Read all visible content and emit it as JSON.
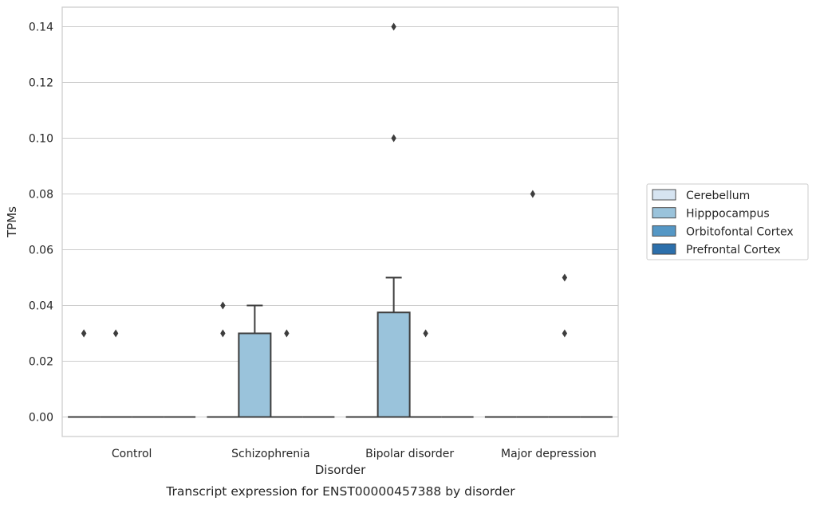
{
  "chart_data": {
    "type": "box",
    "caption": "Transcript expression for ENST00000457388 by disorder",
    "xlabel": "Disorder",
    "ylabel": "TPMs",
    "ylim": [
      -0.007,
      0.147
    ],
    "yticks": [
      0.0,
      0.02,
      0.04,
      0.06,
      0.08,
      0.1,
      0.12,
      0.14
    ],
    "ytick_labels": [
      "0.00",
      "0.02",
      "0.04",
      "0.06",
      "0.08",
      "0.10",
      "0.12",
      "0.14"
    ],
    "grid": "horizontal",
    "legend_position": "right",
    "categories": [
      "Control",
      "Schizophrenia",
      "Bipolar disorder",
      "Major depression"
    ],
    "series": [
      {
        "name": "Cerebellum",
        "color": "#d6e4f1",
        "boxes": [
          {
            "category": "Control",
            "q1": 0.0,
            "median": 0.0,
            "q3": 0.0,
            "whisker_low": 0.0,
            "whisker_high": 0.0,
            "outliers": [
              0.03,
              0.03
            ]
          },
          {
            "category": "Schizophrenia",
            "q1": 0.0,
            "median": 0.0,
            "q3": 0.0,
            "whisker_low": 0.0,
            "whisker_high": 0.0,
            "outliers": [
              0.03,
              0.04
            ]
          },
          {
            "category": "Bipolar disorder",
            "q1": 0.0,
            "median": 0.0,
            "q3": 0.0,
            "whisker_low": 0.0,
            "whisker_high": 0.0,
            "outliers": []
          },
          {
            "category": "Major depression",
            "q1": 0.0,
            "median": 0.0,
            "q3": 0.0,
            "whisker_low": 0.0,
            "whisker_high": 0.0,
            "outliers": []
          }
        ]
      },
      {
        "name": "Hipppocampus",
        "color": "#9ac3db",
        "boxes": [
          {
            "category": "Control",
            "q1": 0.0,
            "median": 0.0,
            "q3": 0.0,
            "whisker_low": 0.0,
            "whisker_high": 0.0,
            "outliers": [
              0.03
            ]
          },
          {
            "category": "Schizophrenia",
            "q1": 0.0,
            "median": 0.0,
            "q3": 0.03,
            "whisker_low": 0.0,
            "whisker_high": 0.04,
            "outliers": []
          },
          {
            "category": "Bipolar disorder",
            "q1": 0.0,
            "median": 0.0,
            "q3": 0.0375,
            "whisker_low": 0.0,
            "whisker_high": 0.05,
            "outliers": [
              0.1,
              0.14
            ]
          },
          {
            "category": "Major depression",
            "q1": 0.0,
            "median": 0.0,
            "q3": 0.0,
            "whisker_low": 0.0,
            "whisker_high": 0.0,
            "outliers": [
              0.08
            ]
          }
        ]
      },
      {
        "name": "Orbitofontal Cortex",
        "color": "#5597c5",
        "boxes": [
          {
            "category": "Control",
            "q1": 0.0,
            "median": 0.0,
            "q3": 0.0,
            "whisker_low": 0.0,
            "whisker_high": 0.0,
            "outliers": []
          },
          {
            "category": "Schizophrenia",
            "q1": 0.0,
            "median": 0.0,
            "q3": 0.0,
            "whisker_low": 0.0,
            "whisker_high": 0.0,
            "outliers": [
              0.03
            ]
          },
          {
            "category": "Bipolar disorder",
            "q1": 0.0,
            "median": 0.0,
            "q3": 0.0,
            "whisker_low": 0.0,
            "whisker_high": 0.0,
            "outliers": [
              0.03
            ]
          },
          {
            "category": "Major depression",
            "q1": 0.0,
            "median": 0.0,
            "q3": 0.0,
            "whisker_low": 0.0,
            "whisker_high": 0.0,
            "outliers": [
              0.03,
              0.05
            ]
          }
        ]
      },
      {
        "name": "Prefrontal Cortex",
        "color": "#2c6fab",
        "boxes": [
          {
            "category": "Control",
            "q1": 0.0,
            "median": 0.0,
            "q3": 0.0,
            "whisker_low": 0.0,
            "whisker_high": 0.0,
            "outliers": []
          },
          {
            "category": "Schizophrenia",
            "q1": 0.0,
            "median": 0.0,
            "q3": 0.0,
            "whisker_low": 0.0,
            "whisker_high": 0.0,
            "outliers": []
          },
          {
            "category": "Bipolar disorder",
            "q1": 0.0,
            "median": 0.0,
            "q3": 0.0,
            "whisker_low": 0.0,
            "whisker_high": 0.0,
            "outliers": []
          },
          {
            "category": "Major depression",
            "q1": 0.0,
            "median": 0.0,
            "q3": 0.0,
            "whisker_low": 0.0,
            "whisker_high": 0.0,
            "outliers": []
          }
        ]
      }
    ],
    "colors": {
      "grid": "#cccccc",
      "spine": "#cccccc",
      "box_edge": "#3d3d3d",
      "text": "#262626"
    }
  }
}
